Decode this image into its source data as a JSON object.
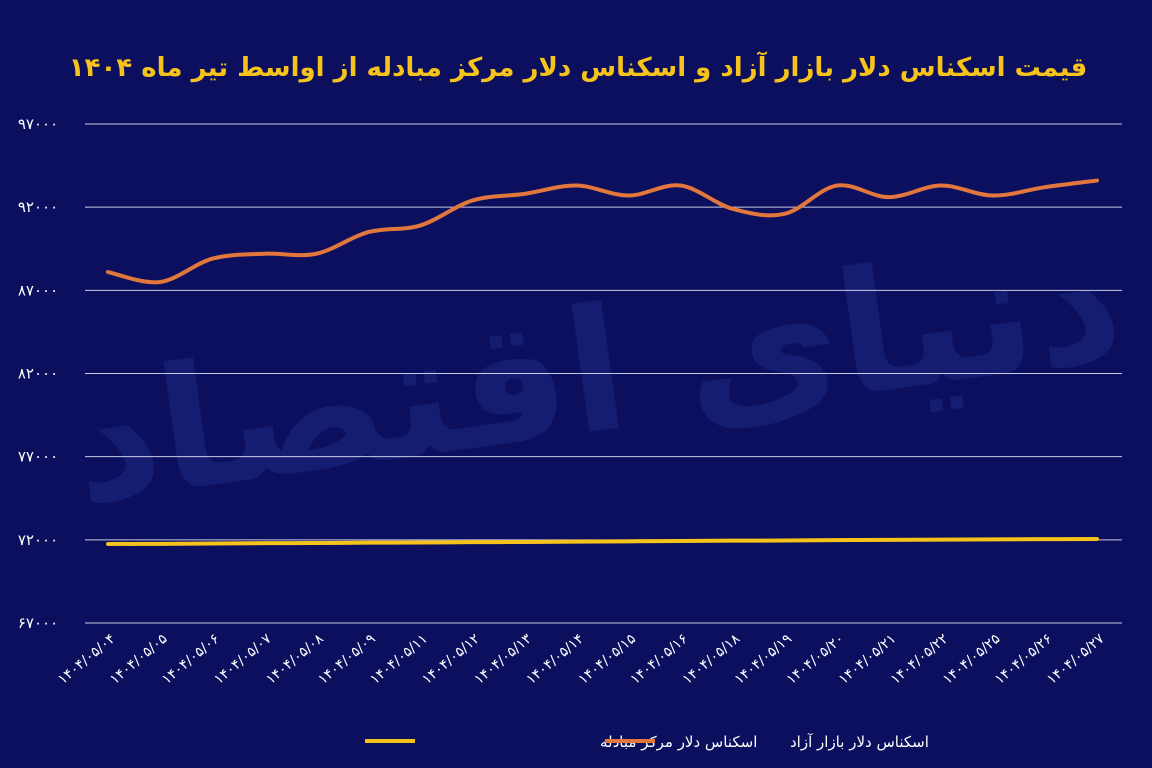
{
  "chart_data": {
    "type": "line",
    "title": "قیمت اسکناس دلار بازار آزاد و اسکناس دلار مرکز مبادله از اواسط تیر ماه ۱۴۰۴",
    "xlabel": "",
    "ylabel": "",
    "ylim": [
      67000,
      97000
    ],
    "yticks": [
      97000,
      92000,
      87000,
      82000,
      77000,
      72000,
      67000
    ],
    "ytick_labels": [
      "۹۷۰۰۰",
      "۹۲۰۰۰",
      "۸۷۰۰۰",
      "۸۲۰۰۰",
      "۷۷۰۰۰",
      "۷۲۰۰۰",
      "۶۷۰۰۰"
    ],
    "grid": true,
    "legend_position": "bottom",
    "categories": [
      "۱۴۰۴/۰۵/۰۴",
      "۱۴۰۴/۰۵/۰۵",
      "۱۴۰۴/۰۵/۰۶",
      "۱۴۰۴/۰۵/۰۷",
      "۱۴۰۴/۰۵/۰۸",
      "۱۴۰۴/۰۵/۰۹",
      "۱۴۰۴/۰۵/۱۱",
      "۱۴۰۴/۰۵/۱۲",
      "۱۴۰۴/۰۵/۱۳",
      "۱۴۰۴/۰۵/۱۴",
      "۱۴۰۴/۰۵/۱۵",
      "۱۴۰۴/۰۵/۱۶",
      "۱۴۰۴/۰۵/۱۸",
      "۱۴۰۴/۰۵/۱۹",
      "۱۴۰۴/۰۵/۲۰",
      "۱۴۰۴/۰۵/۲۱",
      "۱۴۰۴/۰۵/۲۲",
      "۱۴۰۴/۰۵/۲۵",
      "۱۴۰۴/۰۵/۲۶",
      "۱۴۰۴/۰۵/۲۷"
    ],
    "series": [
      {
        "name": "اسکناس دلار مرکز مبادله",
        "color": "#f6c31c",
        "values": [
          71750,
          71760,
          71780,
          71800,
          71810,
          71830,
          71840,
          71860,
          71870,
          71890,
          71910,
          71930,
          71950,
          71960,
          71980,
          72000,
          72010,
          72030,
          72040,
          72050
        ]
      },
      {
        "name": "اسکناس دلار بازار آزاد",
        "color": "#e2773d",
        "values": [
          88100,
          87500,
          88900,
          89200,
          89200,
          90500,
          90900,
          92400,
          92800,
          93300,
          92700,
          93300,
          91900,
          91600,
          93300,
          92600,
          93300,
          92700,
          93200,
          93600
        ]
      }
    ]
  },
  "watermark": "دنیای اقتصاد",
  "colors": {
    "background": "#0b0f5e",
    "title": "#f6c31c",
    "grid": "#c9cbe6"
  }
}
